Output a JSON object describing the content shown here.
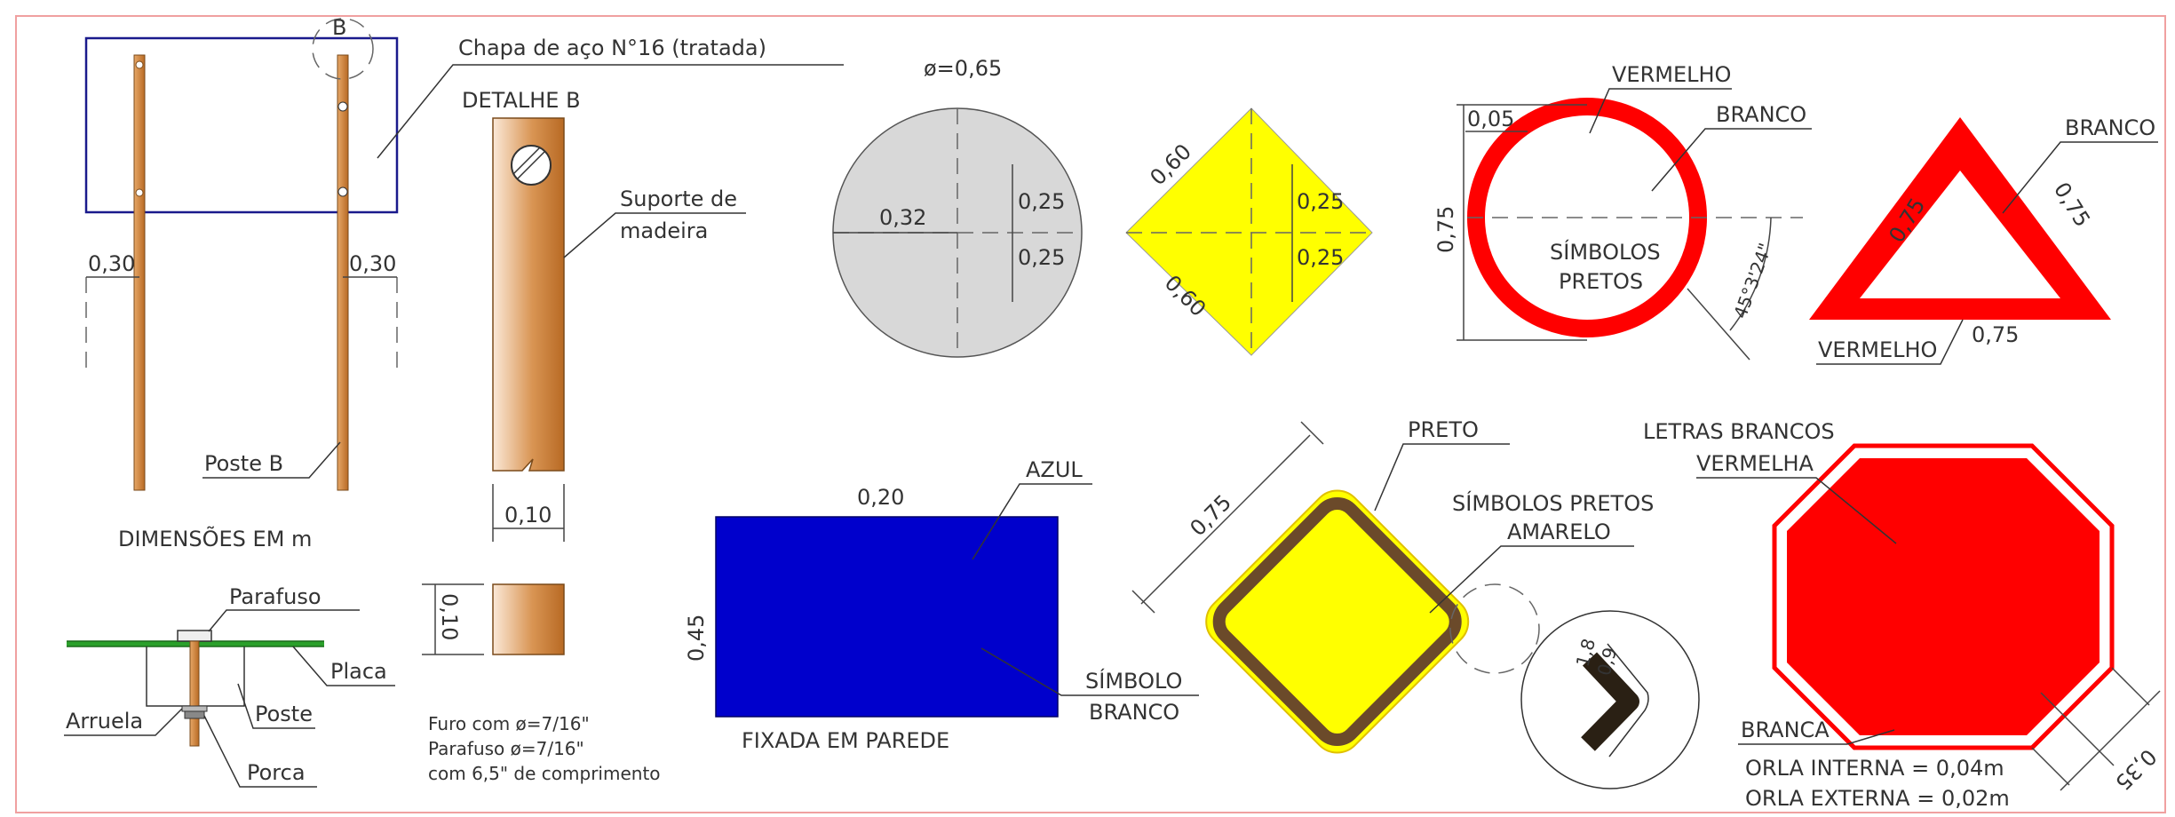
{
  "colors": {
    "frame": "#f0a0a0",
    "panel_blue": "#1a1a8c",
    "wood": "#c87a32",
    "red": "#ff0000",
    "yellow": "#ffff00",
    "blue_sign": "#0000cc",
    "gray_disc": "#d8d8d8",
    "brown_border": "#6b4a2a",
    "green_plate": "#2aa02a"
  },
  "panel_left": {
    "callout_b": "B",
    "plate_label": "Chapa de aço N°16 (tratada)",
    "dim_left": "0,30",
    "dim_right": "0,30",
    "post_label": "Poste B",
    "units_note": "DIMENSÕES EM m"
  },
  "detail_b": {
    "title": "DETALHE B",
    "support_line1": "Suporte de",
    "support_line2": "madeira",
    "width_dim": "0,10",
    "section_dim": "0,10"
  },
  "assembly": {
    "parafuso": "Parafuso",
    "placa": "Placa",
    "poste": "Poste",
    "arruela": "Arruela",
    "porca": "Porca",
    "note_line1": "Furo com ø=7/16\"",
    "note_line2": "Parafuso ø=7/16\"",
    "note_line3": "com 6,5\" de comprimento"
  },
  "circle_sign": {
    "diameter": "ø=0,65",
    "radius": "0,32",
    "dim_top": "0,25",
    "dim_bottom": "0,25"
  },
  "yellow_diamond": {
    "side_top": "0,60",
    "side_bottom": "0,60",
    "dim_top": "0,25",
    "dim_bottom": "0,25"
  },
  "ring_sign": {
    "border_width": "0,05",
    "height": "0,75",
    "outer_color": "VERMELHO",
    "inner_color": "BRANCO",
    "symbols_line1": "SÍMBOLOS",
    "symbols_line2": "PRETOS",
    "angle": "45°3'24\""
  },
  "triangle_sign": {
    "inner_color": "BRANCO",
    "side_left": "0,75",
    "side_right": "0,75",
    "base": "0,75",
    "outer_color": "VERMELHO"
  },
  "blue_sign": {
    "width": "0,20",
    "height": "0,45",
    "color_label": "AZUL",
    "symbol_line1": "SÍMBOLO",
    "symbol_line2": "BRANCO",
    "mount_note": "FIXADA EM PAREDE"
  },
  "warning_sign": {
    "side": "0,75",
    "border_label": "PRETO",
    "symbols_label": "SÍMBOLOS PRETOS",
    "fill_label": "AMARELO",
    "detail_dim_a": "1,8",
    "detail_dim_b": "0,9"
  },
  "octagon_sign": {
    "letters_label": "LETRAS BRANCOS",
    "fill_label": "VERMELHA",
    "border_label": "BRANCA",
    "inner_border_note": "ORLA INTERNA = 0,04m",
    "outer_border_note": "ORLA EXTERNA = 0,02m",
    "side": "0,35"
  }
}
